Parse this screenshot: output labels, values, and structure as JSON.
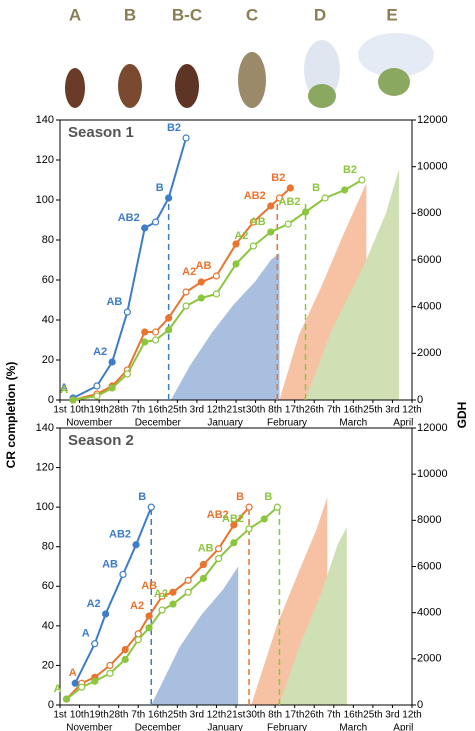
{
  "stages": [
    "A",
    "B",
    "B-C",
    "C",
    "D",
    "E"
  ],
  "axis_labels": {
    "y": "CR completion (%)",
    "y2": "GDH"
  },
  "chart_data": [
    {
      "type": "line",
      "title": "Season 1",
      "xlim": [
        0,
        162
      ],
      "xticks": [
        {
          "value": 0,
          "label": "1st"
        },
        {
          "value": 9,
          "label": "10th"
        },
        {
          "value": 18,
          "label": "19th"
        },
        {
          "value": 27,
          "label": "28th"
        },
        {
          "value": 36,
          "label": "7th"
        },
        {
          "value": 45,
          "label": "16th"
        },
        {
          "value": 54,
          "label": "25th"
        },
        {
          "value": 63,
          "label": "3rd"
        },
        {
          "value": 72,
          "label": "12th"
        },
        {
          "value": 81,
          "label": "21st"
        },
        {
          "value": 90,
          "label": "30th"
        },
        {
          "value": 99,
          "label": "8th"
        },
        {
          "value": 108,
          "label": "17th"
        },
        {
          "value": 117,
          "label": "26th"
        },
        {
          "value": 126,
          "label": "7th"
        },
        {
          "value": 135,
          "label": "16th"
        },
        {
          "value": 144,
          "label": "25th"
        },
        {
          "value": 153,
          "label": "3rd"
        },
        {
          "value": 162,
          "label": "12th"
        }
      ],
      "month_labels": [
        "November",
        "December",
        "January",
        "February",
        "March",
        "April"
      ],
      "ylim": [
        0,
        140
      ],
      "yticks": [
        0,
        20,
        40,
        60,
        80,
        100,
        120,
        140
      ],
      "y2lim": [
        0,
        12000
      ],
      "y2ticks": [
        0,
        2000,
        4000,
        6000,
        8000,
        10000,
        12000
      ],
      "areas": [
        {
          "color": "#a9bfdf",
          "axis": "y2",
          "x": [
            51,
            60,
            70,
            80,
            90,
            97,
            101
          ],
          "values": [
            0,
            1500,
            2900,
            4100,
            5100,
            6000,
            6300
          ]
        },
        {
          "color": "#f7c2a3",
          "axis": "y2",
          "x": [
            101,
            110,
            120,
            130,
            141
          ],
          "values": [
            0,
            2800,
            4800,
            7000,
            9300
          ]
        },
        {
          "color": "#cfe0b5",
          "axis": "y2",
          "x": [
            113,
            125,
            140,
            150,
            156
          ],
          "values": [
            0,
            3000,
            5800,
            8000,
            9900
          ]
        }
      ],
      "dashed_lines": [
        {
          "color": "#3d7cc9",
          "x": 50
        },
        {
          "color": "#e8742f",
          "x": 100
        },
        {
          "color": "#8cc63e",
          "x": 113
        }
      ],
      "series": [
        {
          "color": "#3d7cc9",
          "x": [
            6,
            17,
            24,
            31,
            39,
            44,
            50,
            58
          ],
          "values": [
            1,
            7,
            19,
            44,
            86,
            89,
            101,
            131
          ],
          "stage_labels": [
            "A",
            null,
            "A2",
            "AB",
            "AB2",
            null,
            "B",
            "B2"
          ]
        },
        {
          "color": "#e8742f",
          "x": [
            6,
            17,
            24,
            31,
            39,
            44,
            50,
            58,
            65,
            72,
            81,
            89,
            97,
            101,
            106
          ],
          "values": [
            0,
            3,
            7,
            15,
            34,
            34,
            41,
            54,
            59,
            62,
            78,
            89,
            97,
            101,
            106
          ],
          "stage_labels": [
            "A",
            null,
            null,
            null,
            null,
            null,
            null,
            null,
            "A2",
            "AB",
            null,
            null,
            "AB2",
            null,
            "B2"
          ]
        },
        {
          "color": "#8cc63e",
          "x": [
            6,
            17,
            24,
            31,
            39,
            44,
            50,
            58,
            65,
            72,
            81,
            89,
            97,
            105,
            113,
            122,
            131,
            139
          ],
          "values": [
            0,
            2,
            6,
            13,
            29,
            30,
            35,
            47,
            51,
            53,
            68,
            77,
            84,
            88,
            94,
            101,
            105,
            110
          ],
          "stage_labels": [
            "A",
            null,
            null,
            null,
            null,
            null,
            null,
            null,
            null,
            null,
            null,
            "A2",
            "AB",
            null,
            "AB2",
            "B",
            null,
            "B2"
          ]
        }
      ]
    },
    {
      "type": "line",
      "title": "Season 2",
      "xlim": [
        0,
        162
      ],
      "xticks": [
        {
          "value": 0,
          "label": "1st"
        },
        {
          "value": 9,
          "label": "10th"
        },
        {
          "value": 18,
          "label": "19th"
        },
        {
          "value": 27,
          "label": "28th"
        },
        {
          "value": 36,
          "label": "7th"
        },
        {
          "value": 45,
          "label": "16th"
        },
        {
          "value": 54,
          "label": "25th"
        },
        {
          "value": 63,
          "label": "3rd"
        },
        {
          "value": 72,
          "label": "12th"
        },
        {
          "value": 81,
          "label": "21st"
        },
        {
          "value": 90,
          "label": "30th"
        },
        {
          "value": 99,
          "label": "8th"
        },
        {
          "value": 108,
          "label": "17th"
        },
        {
          "value": 117,
          "label": "26th"
        },
        {
          "value": 126,
          "label": "7th"
        },
        {
          "value": 135,
          "label": "16th"
        },
        {
          "value": 144,
          "label": "25th"
        },
        {
          "value": 153,
          "label": "3rd"
        },
        {
          "value": 162,
          "label": "12th"
        }
      ],
      "month_labels": [
        "November",
        "December",
        "January",
        "February",
        "March",
        "April"
      ],
      "ylim": [
        0,
        140
      ],
      "yticks": [
        0,
        20,
        40,
        60,
        80,
        100,
        120,
        140
      ],
      "y2lim": [
        0,
        12000
      ],
      "y2ticks": [
        0,
        2000,
        4000,
        6000,
        8000,
        10000,
        12000
      ],
      "areas": [
        {
          "color": "#a9bfdf",
          "axis": "y2",
          "x": [
            42,
            55,
            65,
            75,
            82
          ],
          "values": [
            0,
            2500,
            3900,
            5000,
            6000
          ]
        },
        {
          "color": "#f7c2a3",
          "axis": "y2",
          "x": [
            88,
            100,
            110,
            118,
            123
          ],
          "values": [
            0,
            3500,
            5800,
            7600,
            9000
          ]
        },
        {
          "color": "#cfe0b5",
          "axis": "y2",
          "x": [
            101,
            110,
            120,
            128,
            132
          ],
          "values": [
            0,
            2500,
            4800,
            7000,
            7700
          ]
        }
      ],
      "dashed_lines": [
        {
          "color": "#3d7cc9",
          "x": 42
        },
        {
          "color": "#e8742f",
          "x": 87
        },
        {
          "color": "#8cc63e",
          "x": 101
        }
      ],
      "series": [
        {
          "color": "#3d7cc9",
          "x": [
            7,
            16,
            21,
            29,
            35,
            42
          ],
          "values": [
            11,
            31,
            46,
            66,
            81,
            100
          ],
          "stage_labels": [
            null,
            "A",
            "A2",
            "AB",
            "AB2",
            "B"
          ]
        },
        {
          "color": "#e8742f",
          "x": [
            3,
            10,
            16,
            23,
            30,
            36,
            41,
            47,
            52,
            59,
            66,
            73,
            80,
            87
          ],
          "values": [
            3,
            11,
            14,
            20,
            28,
            36,
            45,
            55,
            57,
            63,
            71,
            79,
            91,
            100
          ],
          "stage_labels": [
            null,
            "A",
            null,
            null,
            null,
            null,
            "A2",
            "AB",
            null,
            null,
            null,
            null,
            "AB2",
            "B"
          ]
        },
        {
          "color": "#8cc63e",
          "x": [
            3,
            10,
            16,
            23,
            30,
            36,
            41,
            47,
            52,
            59,
            66,
            73,
            80,
            87,
            94,
            100
          ],
          "values": [
            3,
            9,
            12,
            16,
            23,
            33,
            39,
            48,
            51,
            57,
            64,
            74,
            82,
            89,
            94,
            100
          ],
          "stage_labels": [
            "A",
            null,
            null,
            null,
            null,
            null,
            null,
            null,
            "A2",
            null,
            null,
            "AB",
            null,
            "AB2",
            null,
            "B"
          ]
        }
      ]
    }
  ]
}
